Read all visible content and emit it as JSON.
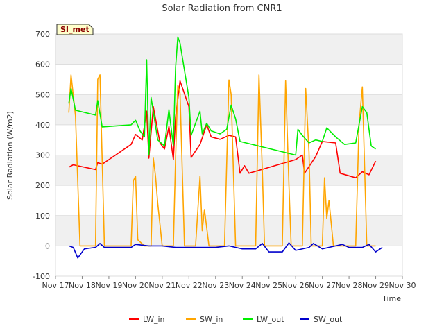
{
  "chart_data": {
    "type": "line",
    "title": "Solar Radiation from CNR1",
    "xlabel": "Time",
    "ylabel": "Solar Radiation (W/m2)",
    "ylim": [
      -100,
      700
    ],
    "yticks": [
      -100,
      0,
      100,
      200,
      300,
      400,
      500,
      600,
      700
    ],
    "xlim": [
      "2023-11-17",
      "2023-11-30"
    ],
    "xtick_labels": [
      "Nov 17",
      "Nov 18",
      "Nov 19",
      "Nov 20",
      "Nov 21",
      "Nov 22",
      "Nov 23",
      "Nov 24",
      "Nov 25",
      "Nov 26",
      "Nov 27",
      "Nov 28",
      "Nov 29",
      "Nov 30"
    ],
    "grid": true,
    "legend_position": "bottom",
    "badge": "SI_met",
    "series": [
      {
        "name": "LW_in",
        "color": "#ff0000",
        "points": [
          [
            "2023-11-17 12:00",
            260
          ],
          [
            "2023-11-17 16:00",
            268
          ],
          [
            "2023-11-18 12:00",
            252
          ],
          [
            "2023-11-18 14:00",
            275
          ],
          [
            "2023-11-18 18:00",
            270
          ],
          [
            "2023-11-19 20:00",
            335
          ],
          [
            "2023-11-20 00:00",
            368
          ],
          [
            "2023-11-20 06:00",
            350
          ],
          [
            "2023-11-20 10:00",
            445
          ],
          [
            "2023-11-20 12:00",
            290
          ],
          [
            "2023-11-20 16:00",
            460
          ],
          [
            "2023-11-20 22:00",
            340
          ],
          [
            "2023-11-21 02:00",
            320
          ],
          [
            "2023-11-21 06:00",
            395
          ],
          [
            "2023-11-21 10:00",
            285
          ],
          [
            "2023-11-21 12:00",
            425
          ],
          [
            "2023-11-21 16:00",
            545
          ],
          [
            "2023-11-22 00:00",
            460
          ],
          [
            "2023-11-22 02:00",
            292
          ],
          [
            "2023-11-22 10:00",
            335
          ],
          [
            "2023-11-22 16:00",
            400
          ],
          [
            "2023-11-22 20:00",
            360
          ],
          [
            "2023-11-23 04:00",
            352
          ],
          [
            "2023-11-23 12:00",
            365
          ],
          [
            "2023-11-23 18:00",
            360
          ],
          [
            "2023-11-23 22:00",
            240
          ],
          [
            "2023-11-24 02:00",
            265
          ],
          [
            "2023-11-24 06:00",
            240
          ],
          [
            "2023-11-26 00:00",
            285
          ],
          [
            "2023-11-26 06:00",
            300
          ],
          [
            "2023-11-26 08:00",
            240
          ],
          [
            "2023-11-26 18:00",
            295
          ],
          [
            "2023-11-27 00:00",
            345
          ],
          [
            "2023-11-27 12:00",
            340
          ],
          [
            "2023-11-27 16:00",
            240
          ],
          [
            "2023-11-28 06:00",
            225
          ],
          [
            "2023-11-28 12:00",
            245
          ],
          [
            "2023-11-28 18:00",
            235
          ],
          [
            "2023-11-29 00:00",
            280
          ]
        ]
      },
      {
        "name": "SW_in",
        "color": "#ffa500",
        "points": [
          [
            "2023-11-17 12:00",
            440
          ],
          [
            "2023-11-17 14:00",
            565
          ],
          [
            "2023-11-17 18:00",
            430
          ],
          [
            "2023-11-17 22:00",
            0
          ],
          [
            "2023-11-18 12:00",
            0
          ],
          [
            "2023-11-18 14:00",
            550
          ],
          [
            "2023-11-18 16:00",
            565
          ],
          [
            "2023-11-18 20:00",
            0
          ],
          [
            "2023-11-19 20:00",
            0
          ],
          [
            "2023-11-19 22:00",
            215
          ],
          [
            "2023-11-20 00:00",
            230
          ],
          [
            "2023-11-20 02:00",
            20
          ],
          [
            "2023-11-20 08:00",
            0
          ],
          [
            "2023-11-20 14:00",
            0
          ],
          [
            "2023-11-20 16:00",
            290
          ],
          [
            "2023-11-20 18:00",
            230
          ],
          [
            "2023-11-20 20:00",
            140
          ],
          [
            "2023-11-21 00:00",
            0
          ],
          [
            "2023-11-21 10:00",
            0
          ],
          [
            "2023-11-21 12:00",
            290
          ],
          [
            "2023-11-21 14:00",
            530
          ],
          [
            "2023-11-21 16:00",
            505
          ],
          [
            "2023-11-21 20:00",
            0
          ],
          [
            "2023-11-22 06:00",
            0
          ],
          [
            "2023-11-22 10:00",
            230
          ],
          [
            "2023-11-22 12:00",
            50
          ],
          [
            "2023-11-22 14:00",
            120
          ],
          [
            "2023-11-22 18:00",
            0
          ],
          [
            "2023-11-23 08:00",
            0
          ],
          [
            "2023-11-23 12:00",
            548
          ],
          [
            "2023-11-23 14:00",
            500
          ],
          [
            "2023-11-23 18:00",
            0
          ],
          [
            "2023-11-24 12:00",
            0
          ],
          [
            "2023-11-24 15:00",
            565
          ],
          [
            "2023-11-24 18:00",
            250
          ],
          [
            "2023-11-24 20:00",
            0
          ],
          [
            "2023-11-25 12:00",
            0
          ],
          [
            "2023-11-25 15:00",
            545
          ],
          [
            "2023-11-25 18:00",
            200
          ],
          [
            "2023-11-25 20:00",
            0
          ],
          [
            "2023-11-26 06:00",
            0
          ],
          [
            "2023-11-26 09:00",
            520
          ],
          [
            "2023-11-26 12:00",
            310
          ],
          [
            "2023-11-26 14:00",
            0
          ],
          [
            "2023-11-27 00:00",
            0
          ],
          [
            "2023-11-27 02:00",
            225
          ],
          [
            "2023-11-27 04:00",
            90
          ],
          [
            "2023-11-27 06:00",
            150
          ],
          [
            "2023-11-27 10:00",
            0
          ],
          [
            "2023-11-28 06:00",
            0
          ],
          [
            "2023-11-28 09:00",
            400
          ],
          [
            "2023-11-28 12:00",
            525
          ],
          [
            "2023-11-28 16:00",
            0
          ],
          [
            "2023-11-29 00:00",
            0
          ]
        ]
      },
      {
        "name": "LW_out",
        "color": "#00ee00",
        "points": [
          [
            "2023-11-17 12:00",
            470
          ],
          [
            "2023-11-17 14:00",
            520
          ],
          [
            "2023-11-17 18:00",
            448
          ],
          [
            "2023-11-18 12:00",
            432
          ],
          [
            "2023-11-18 14:00",
            480
          ],
          [
            "2023-11-18 18:00",
            393
          ],
          [
            "2023-11-19 20:00",
            400
          ],
          [
            "2023-11-20 00:00",
            415
          ],
          [
            "2023-11-20 04:00",
            380
          ],
          [
            "2023-11-20 08:00",
            360
          ],
          [
            "2023-11-20 10:00",
            615
          ],
          [
            "2023-11-20 12:00",
            300
          ],
          [
            "2023-11-20 14:00",
            490
          ],
          [
            "2023-11-20 20:00",
            350
          ],
          [
            "2023-11-21 02:00",
            330
          ],
          [
            "2023-11-21 06:00",
            450
          ],
          [
            "2023-11-21 10:00",
            330
          ],
          [
            "2023-11-21 12:00",
            590
          ],
          [
            "2023-11-21 14:00",
            690
          ],
          [
            "2023-11-21 16:00",
            670
          ],
          [
            "2023-11-22 00:00",
            490
          ],
          [
            "2023-11-22 02:00",
            365
          ],
          [
            "2023-11-22 10:00",
            445
          ],
          [
            "2023-11-22 12:00",
            370
          ],
          [
            "2023-11-22 16:00",
            405
          ],
          [
            "2023-11-22 20:00",
            380
          ],
          [
            "2023-11-23 04:00",
            370
          ],
          [
            "2023-11-23 10:00",
            385
          ],
          [
            "2023-11-23 14:00",
            465
          ],
          [
            "2023-11-23 18:00",
            420
          ],
          [
            "2023-11-23 22:00",
            345
          ],
          [
            "2023-11-26 00:00",
            300
          ],
          [
            "2023-11-26 02:00",
            385
          ],
          [
            "2023-11-26 06:00",
            365
          ],
          [
            "2023-11-26 12:00",
            340
          ],
          [
            "2023-11-26 18:00",
            350
          ],
          [
            "2023-11-27 00:00",
            345
          ],
          [
            "2023-11-27 04:00",
            390
          ],
          [
            "2023-11-27 08:00",
            375
          ],
          [
            "2023-11-27 12:00",
            360
          ],
          [
            "2023-11-27 20:00",
            335
          ],
          [
            "2023-11-28 06:00",
            340
          ],
          [
            "2023-11-28 12:00",
            460
          ],
          [
            "2023-11-28 16:00",
            440
          ],
          [
            "2023-11-28 20:00",
            330
          ],
          [
            "2023-11-29 00:00",
            320
          ]
        ]
      },
      {
        "name": "SW_out",
        "color": "#0000cc",
        "points": [
          [
            "2023-11-17 12:00",
            0
          ],
          [
            "2023-11-17 16:00",
            -5
          ],
          [
            "2023-11-17 20:00",
            -40
          ],
          [
            "2023-11-18 02:00",
            -10
          ],
          [
            "2023-11-18 12:00",
            -5
          ],
          [
            "2023-11-18 16:00",
            8
          ],
          [
            "2023-11-18 20:00",
            -5
          ],
          [
            "2023-11-19 20:00",
            -5
          ],
          [
            "2023-11-20 00:00",
            5
          ],
          [
            "2023-11-20 12:00",
            0
          ],
          [
            "2023-11-21 00:00",
            0
          ],
          [
            "2023-11-21 12:00",
            -5
          ],
          [
            "2023-11-22 00:00",
            -5
          ],
          [
            "2023-11-22 12:00",
            -5
          ],
          [
            "2023-11-23 00:00",
            -5
          ],
          [
            "2023-11-23 12:00",
            0
          ],
          [
            "2023-11-24 00:00",
            -10
          ],
          [
            "2023-11-24 12:00",
            -10
          ],
          [
            "2023-11-24 18:00",
            8
          ],
          [
            "2023-11-25 00:00",
            -20
          ],
          [
            "2023-11-25 12:00",
            -20
          ],
          [
            "2023-11-25 18:00",
            10
          ],
          [
            "2023-11-26 00:00",
            -15
          ],
          [
            "2023-11-26 12:00",
            -5
          ],
          [
            "2023-11-26 16:00",
            8
          ],
          [
            "2023-11-27 00:00",
            -10
          ],
          [
            "2023-11-27 12:00",
            0
          ],
          [
            "2023-11-27 18:00",
            5
          ],
          [
            "2023-11-28 00:00",
            -5
          ],
          [
            "2023-11-28 12:00",
            -5
          ],
          [
            "2023-11-28 18:00",
            5
          ],
          [
            "2023-11-29 00:00",
            -20
          ],
          [
            "2023-11-29 06:00",
            -5
          ]
        ]
      }
    ]
  }
}
